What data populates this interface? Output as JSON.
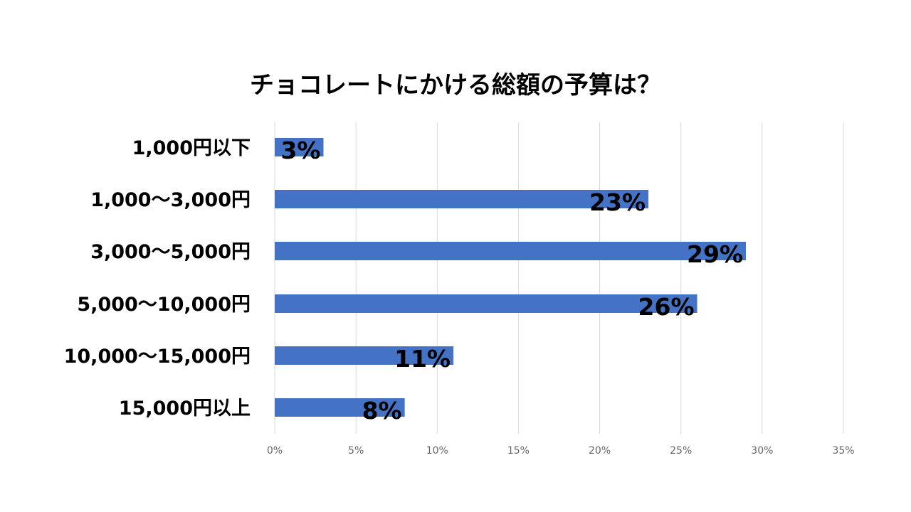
{
  "chart_data": {
    "type": "bar",
    "orientation": "horizontal",
    "title": "チョコレートにかける総額の予算は？",
    "categories": [
      "1,000円以下",
      "1,000～3,000円",
      "3,000～5,000円",
      "5,000～10,000円",
      "10,000～15,000円",
      "15,000円以上"
    ],
    "values": [
      3,
      23,
      29,
      26,
      11,
      8
    ],
    "data_labels": [
      "3%",
      "23%",
      "29%",
      "26%",
      "11%",
      "8%"
    ],
    "xlim": [
      0,
      35
    ],
    "x_ticks": [
      0,
      5,
      10,
      15,
      20,
      25,
      30,
      35
    ],
    "x_tick_labels": [
      "0%",
      "5%",
      "10%",
      "15%",
      "20%",
      "25%",
      "30%",
      "35%"
    ],
    "grid": true,
    "legend": "none",
    "bar_color": "#4472C4",
    "grid_color": "#d9d9d9"
  }
}
